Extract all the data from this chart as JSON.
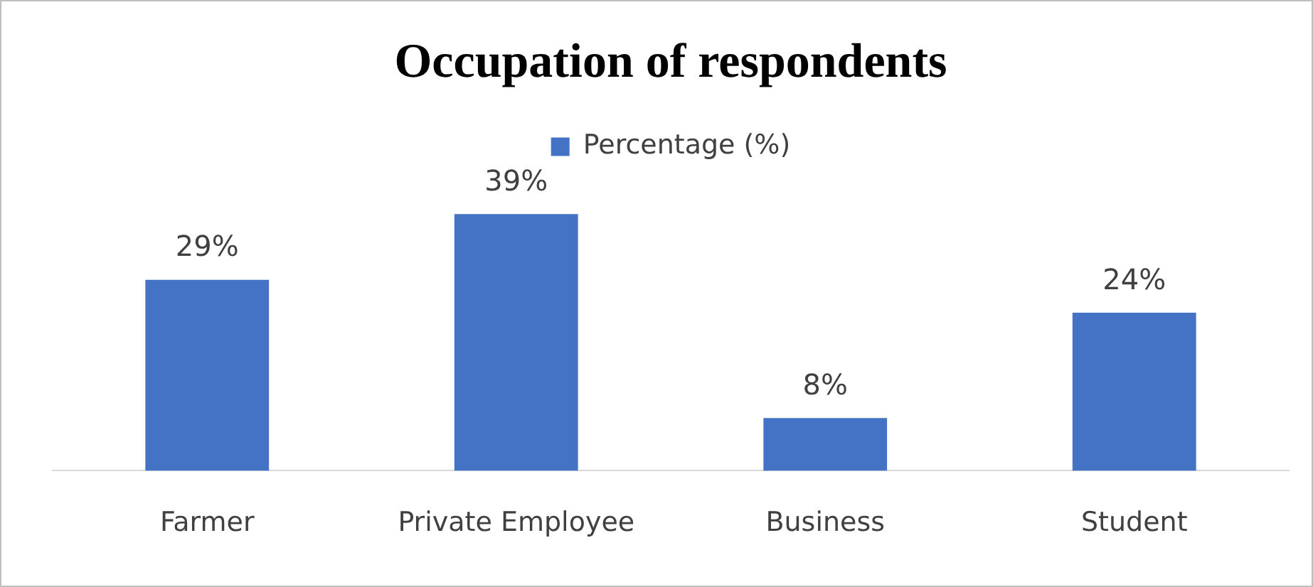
{
  "chart_data": {
    "type": "bar",
    "title": "Occupation of respondents",
    "categories": [
      "Farmer",
      "Private Employee",
      "Business",
      "Student"
    ],
    "series": [
      {
        "name": "Percentage (%)",
        "color": "#4472c4",
        "values": [
          29,
          39,
          8,
          24
        ],
        "value_labels": [
          "29%",
          "39%",
          "8%",
          "24%"
        ]
      }
    ],
    "legend": "top",
    "grid": false
  }
}
